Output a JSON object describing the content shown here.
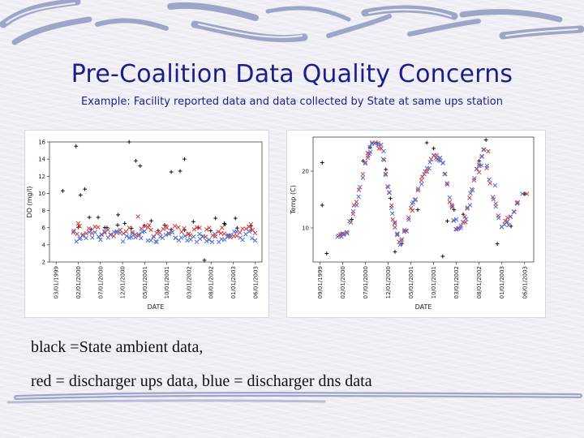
{
  "slide": {
    "title": "Pre-Coalition Data Quality Concerns",
    "subtitle": "Example: Facility reported data and data collected by State at same ups station",
    "caption_line1": "black =State ambient data,",
    "caption_line2": "red = discharger ups data, blue = discharger dns data"
  },
  "colors": {
    "title": "#1d1d8a",
    "state": "#111111",
    "ups": "#d93a3a",
    "dns": "#4a6fd8"
  },
  "chart_data": [
    {
      "type": "scatter",
      "id": "do",
      "title": "",
      "xlabel": "DATE",
      "ylabel": "DO (mg/l)",
      "ylim": [
        2,
        16
      ],
      "yticks": [
        "2",
        "4",
        "6",
        "8",
        "10",
        "12",
        "14",
        "16"
      ],
      "x_tick_labels": [
        "03/01/1999",
        "02/01/2000",
        "07/01/2000",
        "12/01/2000",
        "05/01/2001",
        "10/01/2001",
        "03/01/2002",
        "08/01/2002",
        "01/01/2003",
        "06/01/2003"
      ],
      "xlim": [
        -0.3,
        9.3
      ],
      "series": [
        {
          "name": "State ambient",
          "marker": "plus",
          "color": "#111111",
          "x": [
            0.3,
            0.9,
            1.1,
            1.3,
            1.5,
            1.9,
            2.3,
            2.8,
            3.1,
            3.3,
            3.6,
            3.8,
            4.3,
            4.9,
            5.2,
            5.6,
            5.8,
            6.2,
            6.7,
            7.2,
            7.6,
            8.1,
            8.8
          ],
          "y": [
            10.3,
            15.5,
            9.8,
            10.5,
            7.2,
            7.2,
            6.0,
            7.5,
            6.5,
            16.0,
            13.8,
            13.2,
            6.8,
            6.3,
            12.5,
            12.6,
            14.0,
            6.7,
            2.2,
            7.1,
            6.5,
            7.1,
            6.2
          ],
          "cluster": {
            "x_start": 1.0,
            "x_end": 8.8,
            "y_low": 5.6,
            "y_high": 6.4,
            "count": 14
          }
        },
        {
          "name": "Discharger ups",
          "marker": "x",
          "color": "#d93a3a",
          "cluster": {
            "x_start": 0.8,
            "x_end": 9.0,
            "y_low": 4.9,
            "y_high": 6.2,
            "count": 60
          },
          "x": [
            1.0,
            3.7,
            4.2,
            5.0,
            6.0,
            6.8,
            7.5,
            8.8
          ],
          "y": [
            6.5,
            7.3,
            6.3,
            6.0,
            5.3,
            5.8,
            6.0,
            6.4
          ]
        },
        {
          "name": "Discharger dns",
          "marker": "x",
          "color": "#4a6fd8",
          "cluster": {
            "x_start": 0.8,
            "x_end": 9.0,
            "y_low": 4.3,
            "y_high": 5.6,
            "count": 60
          },
          "x": [
            1.1,
            2.0,
            3.4,
            3.9,
            4.5,
            5.4,
            6.5,
            7.8
          ],
          "y": [
            4.8,
            4.6,
            4.9,
            5.5,
            4.4,
            4.8,
            4.7,
            5.1
          ]
        }
      ]
    },
    {
      "type": "scatter",
      "id": "temp",
      "title": "",
      "xlabel": "DATE",
      "ylabel": "Temp (C)",
      "ylim": [
        4,
        26
      ],
      "yticks": [
        "10",
        "20"
      ],
      "x_tick_labels": [
        "09/01/1999",
        "02/01/2000",
        "07/01/2000",
        "12/01/2000",
        "05/01/2001",
        "10/01/2001",
        "03/01/2002",
        "08/01/2002",
        "01/01/2003",
        "06/01/2003"
      ],
      "xlim": [
        -0.3,
        9.4
      ],
      "profile": {
        "x": [
          0.8,
          1.2,
          1.6,
          2.0,
          2.3,
          2.7,
          3.0,
          3.2,
          3.5,
          3.8,
          4.2,
          4.6,
          5.0,
          5.4,
          5.7,
          6.0,
          6.3,
          6.6,
          6.9,
          7.2,
          7.6,
          8.0,
          8.4,
          8.8
        ],
        "y": [
          8.5,
          9.0,
          14.5,
          21.5,
          24.5,
          24.5,
          17.5,
          12.0,
          7.5,
          10.0,
          15.5,
          19.5,
          22.5,
          22.0,
          15.0,
          10.0,
          10.5,
          15.5,
          20.0,
          23.5,
          15.5,
          10.5,
          12.0,
          16.0
        ]
      },
      "series": [
        {
          "name": "State ambient",
          "marker": "plus",
          "color": "#111111",
          "x": [
            0.1,
            0.1,
            0.3,
            1.4,
            1.9,
            2.2,
            2.5,
            2.9,
            3.1,
            3.3,
            3.6,
            4.3,
            4.7,
            5.0,
            5.4,
            5.6,
            5.9,
            6.3,
            7.0,
            7.3,
            7.8,
            8.4,
            9.0
          ],
          "y": [
            21.5,
            14.0,
            5.5,
            11.5,
            21.8,
            24.2,
            25.0,
            20.3,
            15.2,
            5.8,
            7.2,
            13.2,
            25.0,
            24.0,
            5.0,
            11.2,
            13.2,
            12.4,
            21.8,
            25.5,
            7.2,
            10.3,
            16.0
          ]
        },
        {
          "name": "Discharger ups",
          "marker": "x",
          "color": "#d93a3a",
          "x": [
            0.9,
            1.5,
            2.1,
            2.6,
            3.3,
            4.0,
            4.5,
            5.1,
            5.8,
            6.4,
            7.0,
            7.4,
            8.2,
            8.7,
            9.1
          ],
          "y": [
            8.8,
            14.0,
            23.2,
            24.0,
            11.0,
            13.5,
            19.0,
            22.3,
            14.0,
            11.0,
            19.8,
            23.5,
            11.0,
            14.5,
            16.0
          ]
        },
        {
          "name": "Discharger dns",
          "marker": "x",
          "color": "#4a6fd8",
          "x": [
            1.0,
            1.7,
            2.2,
            2.8,
            3.4,
            4.1,
            4.8,
            5.3,
            6.0,
            6.6,
            7.1,
            7.7,
            8.3,
            8.9
          ],
          "y": [
            9.0,
            15.5,
            24.2,
            23.5,
            9.0,
            14.5,
            20.5,
            21.8,
            11.5,
            14.0,
            21.0,
            17.5,
            10.5,
            16.0
          ]
        }
      ]
    }
  ]
}
